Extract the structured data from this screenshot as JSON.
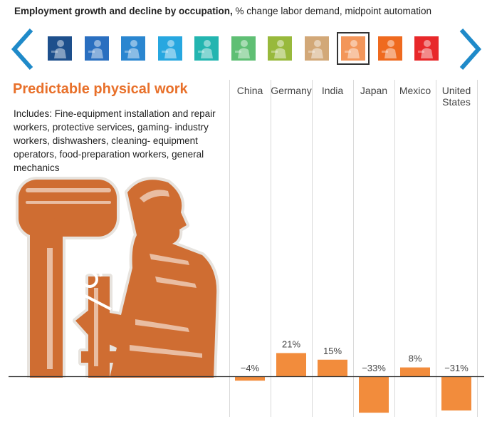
{
  "header": {
    "title_bold": "Employment growth and decline by occupation,",
    "title_rest": " % change labor demand, midpoint automation"
  },
  "nav": {
    "prev_icon": "chevron-left-icon",
    "next_icon": "chevron-right-icon",
    "arrow_color": "#1f8ac9"
  },
  "occupation_tiles": [
    {
      "icon": "worker-icon",
      "color": "#1d4f8c",
      "selected": false
    },
    {
      "icon": "worker-icon",
      "color": "#2a6fc0",
      "selected": false
    },
    {
      "icon": "worker-icon",
      "color": "#2a86d0",
      "selected": false
    },
    {
      "icon": "worker-icon",
      "color": "#27a7e0",
      "selected": false
    },
    {
      "icon": "worker-icon",
      "color": "#23b5b0",
      "selected": false
    },
    {
      "icon": "worker-icon",
      "color": "#5fbf74",
      "selected": false
    },
    {
      "icon": "worker-icon",
      "color": "#98b93c",
      "selected": false
    },
    {
      "icon": "worker-icon",
      "color": "#d2a878",
      "selected": false
    },
    {
      "icon": "worker-icon",
      "color": "#f3965a",
      "selected": true
    },
    {
      "icon": "worker-icon",
      "color": "#ef6a1f",
      "selected": false
    },
    {
      "icon": "worker-icon",
      "color": "#e8282a",
      "selected": false
    }
  ],
  "category": {
    "title": "Predictable physical work",
    "includes": "Includes: Fine-equipment installation and repair workers, protective services, gaming- industry workers, dishwashers, cleaning- equipment operators, food-preparation workers, general mechanics",
    "accent_color": "#e8702a",
    "illustration_icon": "machinist-at-drill-press-icon"
  },
  "chart_data": {
    "type": "bar",
    "categories": [
      "China",
      "Germany",
      "India",
      "Japan",
      "Mexico",
      "United States"
    ],
    "values": [
      -4,
      21,
      15,
      -33,
      8,
      -31
    ],
    "value_labels": [
      "−4%",
      "21%",
      "15%",
      "−33%",
      "8%",
      "−31%"
    ],
    "title": "",
    "xlabel": "",
    "ylabel": "",
    "bar_color": "#f28c3c",
    "grid": true
  }
}
